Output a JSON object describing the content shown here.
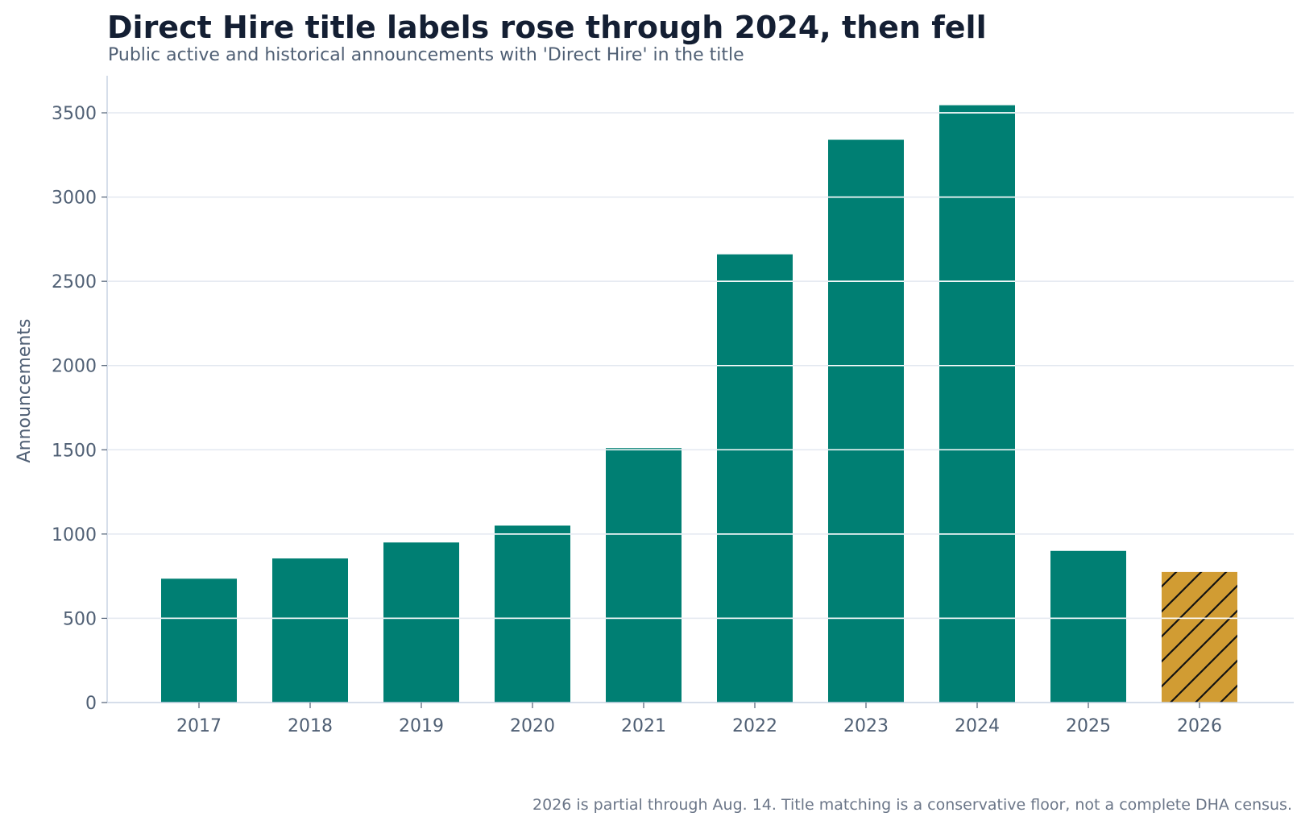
{
  "chart_data": {
    "type": "bar",
    "title": "Direct Hire title labels rose through 2024, then fell",
    "subtitle": "Public active and historical announcements with 'Direct Hire' in the title",
    "xlabel": "",
    "ylabel": "Announcements",
    "categories": [
      "2017",
      "2018",
      "2019",
      "2020",
      "2021",
      "2022",
      "2023",
      "2024",
      "2025",
      "2026"
    ],
    "values": [
      735,
      855,
      950,
      1050,
      1510,
      2660,
      3340,
      3545,
      900,
      775
    ],
    "partial": [
      false,
      false,
      false,
      false,
      false,
      false,
      false,
      false,
      false,
      true
    ],
    "ylim": [
      0,
      3720
    ],
    "yticks": [
      0,
      500,
      1000,
      1500,
      2000,
      2500,
      3000,
      3500
    ],
    "grid": true,
    "legend": "none",
    "colors": {
      "bar": "#007f73",
      "partial_bar": "#d19c33",
      "hatch": "#111111",
      "grid": "#e3e8f0",
      "axis": "#c9d3e3",
      "text": "#4f5f74"
    },
    "note": "2026 is partial through Aug. 14. Title matching is a conservative floor, not a complete DHA census."
  }
}
